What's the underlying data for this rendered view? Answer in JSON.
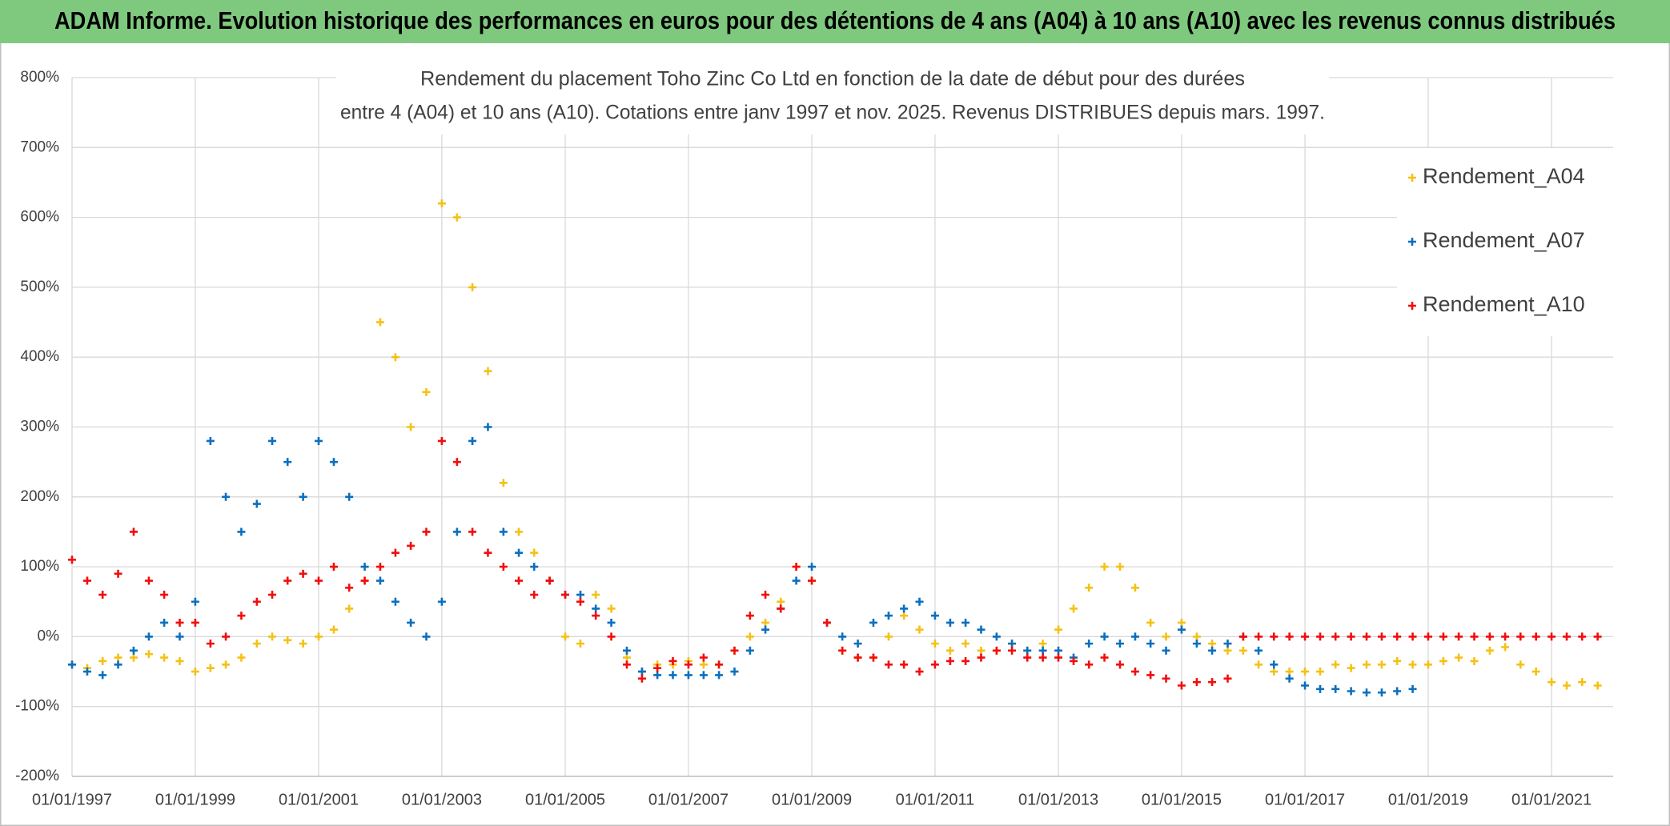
{
  "chart_data": {
    "type": "scatter",
    "banner": "ADAM Informe. Evolution historique des performances en euros pour des détentions de 4 ans (A04) à 10 ans (A10) avec les revenus connus distribués",
    "title": [
      "Rendement du placement Toho Zinc Co Ltd en fonction de la date de début pour des durées",
      "entre 4 (A04) et 10 ans (A10). Cotations entre janv 1997 et nov. 2025. Revenus DISTRIBUES depuis mars. 1997."
    ],
    "xlim": [
      "1997-01-01",
      "2022-01-01"
    ],
    "xticks": [
      {
        "value": "1997-01-01",
        "label": "01/01/1997"
      },
      {
        "value": "1999-01-01",
        "label": "01/01/1999"
      },
      {
        "value": "2001-01-01",
        "label": "01/01/2001"
      },
      {
        "value": "2003-01-01",
        "label": "01/01/2003"
      },
      {
        "value": "2005-01-01",
        "label": "01/01/2005"
      },
      {
        "value": "2007-01-01",
        "label": "01/01/2007"
      },
      {
        "value": "2009-01-01",
        "label": "01/01/2009"
      },
      {
        "value": "2011-01-01",
        "label": "01/01/2011"
      },
      {
        "value": "2013-01-01",
        "label": "01/01/2013"
      },
      {
        "value": "2015-01-01",
        "label": "01/01/2015"
      },
      {
        "value": "2017-01-01",
        "label": "01/01/2017"
      },
      {
        "value": "2019-01-01",
        "label": "01/01/2019"
      },
      {
        "value": "2021-01-01",
        "label": "01/01/2021"
      }
    ],
    "ylim": [
      -200,
      800
    ],
    "yticks": [
      {
        "value": -200,
        "label": "-200%"
      },
      {
        "value": -100,
        "label": "-100%"
      },
      {
        "value": 0,
        "label": "0%"
      },
      {
        "value": 100,
        "label": "100%"
      },
      {
        "value": 200,
        "label": "200%"
      },
      {
        "value": 300,
        "label": "300%"
      },
      {
        "value": 400,
        "label": "400%"
      },
      {
        "value": 500,
        "label": "500%"
      },
      {
        "value": 600,
        "label": "600%"
      },
      {
        "value": 700,
        "label": "700%"
      },
      {
        "value": 800,
        "label": "800%"
      }
    ],
    "grid": true,
    "legend": "right",
    "x": [
      "1997-01-01",
      "1997-04-01",
      "1997-07-01",
      "1997-10-01",
      "1998-01-01",
      "1998-04-01",
      "1998-07-01",
      "1998-10-01",
      "1999-01-01",
      "1999-04-01",
      "1999-07-01",
      "1999-10-01",
      "2000-01-01",
      "2000-04-01",
      "2000-07-01",
      "2000-10-01",
      "2001-01-01",
      "2001-04-01",
      "2001-07-01",
      "2001-10-01",
      "2002-01-01",
      "2002-04-01",
      "2002-07-01",
      "2002-10-01",
      "2003-01-01",
      "2003-04-01",
      "2003-07-01",
      "2003-10-01",
      "2004-01-01",
      "2004-04-01",
      "2004-07-01",
      "2004-10-01",
      "2005-01-01",
      "2005-04-01",
      "2005-07-01",
      "2005-10-01",
      "2006-01-01",
      "2006-04-01",
      "2006-07-01",
      "2006-10-01",
      "2007-01-01",
      "2007-04-01",
      "2007-07-01",
      "2007-10-01",
      "2008-01-01",
      "2008-04-01",
      "2008-07-01",
      "2008-10-01",
      "2009-01-01",
      "2009-04-01",
      "2009-07-01",
      "2009-10-01",
      "2010-01-01",
      "2010-04-01",
      "2010-07-01",
      "2010-10-01",
      "2011-01-01",
      "2011-04-01",
      "2011-07-01",
      "2011-10-01",
      "2012-01-01",
      "2012-04-01",
      "2012-07-01",
      "2012-10-01",
      "2013-01-01",
      "2013-04-01",
      "2013-07-01",
      "2013-10-01",
      "2014-01-01",
      "2014-04-01",
      "2014-07-01",
      "2014-10-01",
      "2015-01-01",
      "2015-04-01",
      "2015-07-01",
      "2015-10-01",
      "2016-01-01",
      "2016-04-01",
      "2016-07-01",
      "2016-10-01",
      "2017-01-01",
      "2017-04-01",
      "2017-07-01",
      "2017-10-01",
      "2018-01-01",
      "2018-04-01",
      "2018-07-01",
      "2018-10-01",
      "2019-01-01",
      "2019-04-01",
      "2019-07-01",
      "2019-10-01",
      "2020-01-01",
      "2020-04-01",
      "2020-07-01",
      "2020-10-01",
      "2021-01-01",
      "2021-04-01",
      "2021-07-01",
      "2021-10-01"
    ],
    "series": [
      {
        "name": "Rendement_A04",
        "color": "#f5c116",
        "values": [
          -40,
          -45,
          -35,
          -30,
          -30,
          -25,
          -30,
          -35,
          -50,
          -45,
          -40,
          -30,
          -10,
          0,
          -5,
          -10,
          0,
          10,
          40,
          80,
          450,
          400,
          300,
          350,
          620,
          600,
          500,
          380,
          220,
          150,
          120,
          80,
          0,
          -10,
          60,
          40,
          -30,
          -50,
          -40,
          -40,
          -35,
          -40,
          -40,
          -20,
          0,
          20,
          50,
          100,
          80,
          20,
          -20,
          -30,
          -30,
          0,
          30,
          10,
          -10,
          -20,
          -10,
          -20,
          -20,
          -10,
          -20,
          -10,
          10,
          40,
          70,
          100,
          100,
          70,
          20,
          0,
          20,
          0,
          -10,
          -20,
          -20,
          -40,
          -50,
          -50,
          -50,
          -50,
          -40,
          -45,
          -40,
          -40,
          -35,
          -40,
          -40,
          -35,
          -30,
          -35,
          -20,
          -15,
          -40,
          -50,
          -65,
          -70,
          -65,
          -70
        ]
      },
      {
        "name": "Rendement_A07",
        "color": "#0a6fbf",
        "values": [
          -40,
          -50,
          -55,
          -40,
          -20,
          0,
          20,
          0,
          50,
          280,
          200,
          150,
          190,
          280,
          250,
          200,
          280,
          250,
          200,
          100,
          80,
          50,
          20,
          0,
          50,
          150,
          280,
          300,
          150,
          120,
          100,
          80,
          60,
          60,
          40,
          20,
          -20,
          -50,
          -55,
          -55,
          -55,
          -55,
          -55,
          -50,
          -20,
          10,
          40,
          80,
          100,
          20,
          0,
          -10,
          20,
          30,
          40,
          50,
          30,
          20,
          20,
          10,
          0,
          -10,
          -20,
          -20,
          -20,
          -30,
          -10,
          0,
          -10,
          0,
          -10,
          -20,
          10,
          -10,
          -20,
          -10,
          0,
          -20,
          -40,
          -60,
          -70,
          -75,
          -75,
          -78,
          -80,
          -80,
          -78,
          -75,
          null,
          null,
          null,
          null,
          null,
          null,
          null,
          null,
          null,
          null,
          null,
          null
        ]
      },
      {
        "name": "Rendement_A10",
        "color": "#f20d0d",
        "values": [
          110,
          80,
          60,
          90,
          150,
          80,
          60,
          20,
          20,
          -10,
          0,
          30,
          50,
          60,
          80,
          90,
          80,
          100,
          70,
          80,
          100,
          120,
          130,
          150,
          280,
          250,
          150,
          120,
          100,
          80,
          60,
          80,
          60,
          50,
          30,
          0,
          -40,
          -60,
          -45,
          -35,
          -40,
          -30,
          -40,
          -20,
          30,
          60,
          40,
          100,
          80,
          20,
          -20,
          -30,
          -30,
          -40,
          -40,
          -50,
          -40,
          -35,
          -35,
          -30,
          -20,
          -20,
          -30,
          -30,
          -30,
          -35,
          -40,
          -30,
          -40,
          -50,
          -55,
          -60,
          -70,
          -65,
          -65,
          -60,
          0,
          0,
          0,
          0,
          0,
          0,
          0,
          0,
          0,
          0,
          0,
          0,
          0,
          0,
          0,
          0,
          0,
          0,
          0,
          0,
          0,
          0,
          0,
          0
        ]
      }
    ]
  }
}
